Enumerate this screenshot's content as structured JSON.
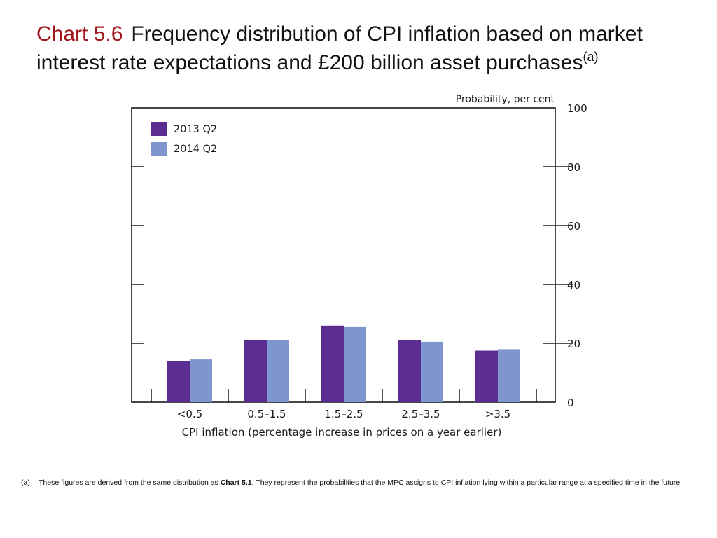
{
  "slide": {
    "chart_number": "Chart 5.6",
    "title_text": "Frequency distribution of CPI inflation based on market interest rate expectations and £200 billion asset purchases",
    "title_sup": "(a)"
  },
  "footnote": {
    "marker": "(a)",
    "text_before": "These figures are derived from the same distribution as ",
    "bold_ref": "Chart 5.1",
    "text_after": ".  They represent the probabilities that the MPC assigns to CPI inflation lying within a particular range at a specified time in the future."
  },
  "chart_data": {
    "type": "bar",
    "categories": [
      "<0.5",
      "0.5–1.5",
      "1.5–2.5",
      "2.5–3.5",
      ">3.5"
    ],
    "series": [
      {
        "name": "2013 Q2",
        "color": "#5b2d91",
        "values": [
          14,
          21,
          26,
          21,
          17.5
        ]
      },
      {
        "name": "2014 Q2",
        "color": "#7f95cd",
        "values": [
          14.5,
          21,
          25.5,
          20.5,
          18
        ]
      }
    ],
    "xlabel": "CPI inflation (percentage increase in prices on a year earlier)",
    "ylabel": "Probability, per cent",
    "ylim": [
      0,
      100
    ],
    "yticks": [
      0,
      20,
      40,
      60,
      80,
      100
    ],
    "grid": false,
    "legend_position": "top-left",
    "y_axis_side": "right"
  }
}
